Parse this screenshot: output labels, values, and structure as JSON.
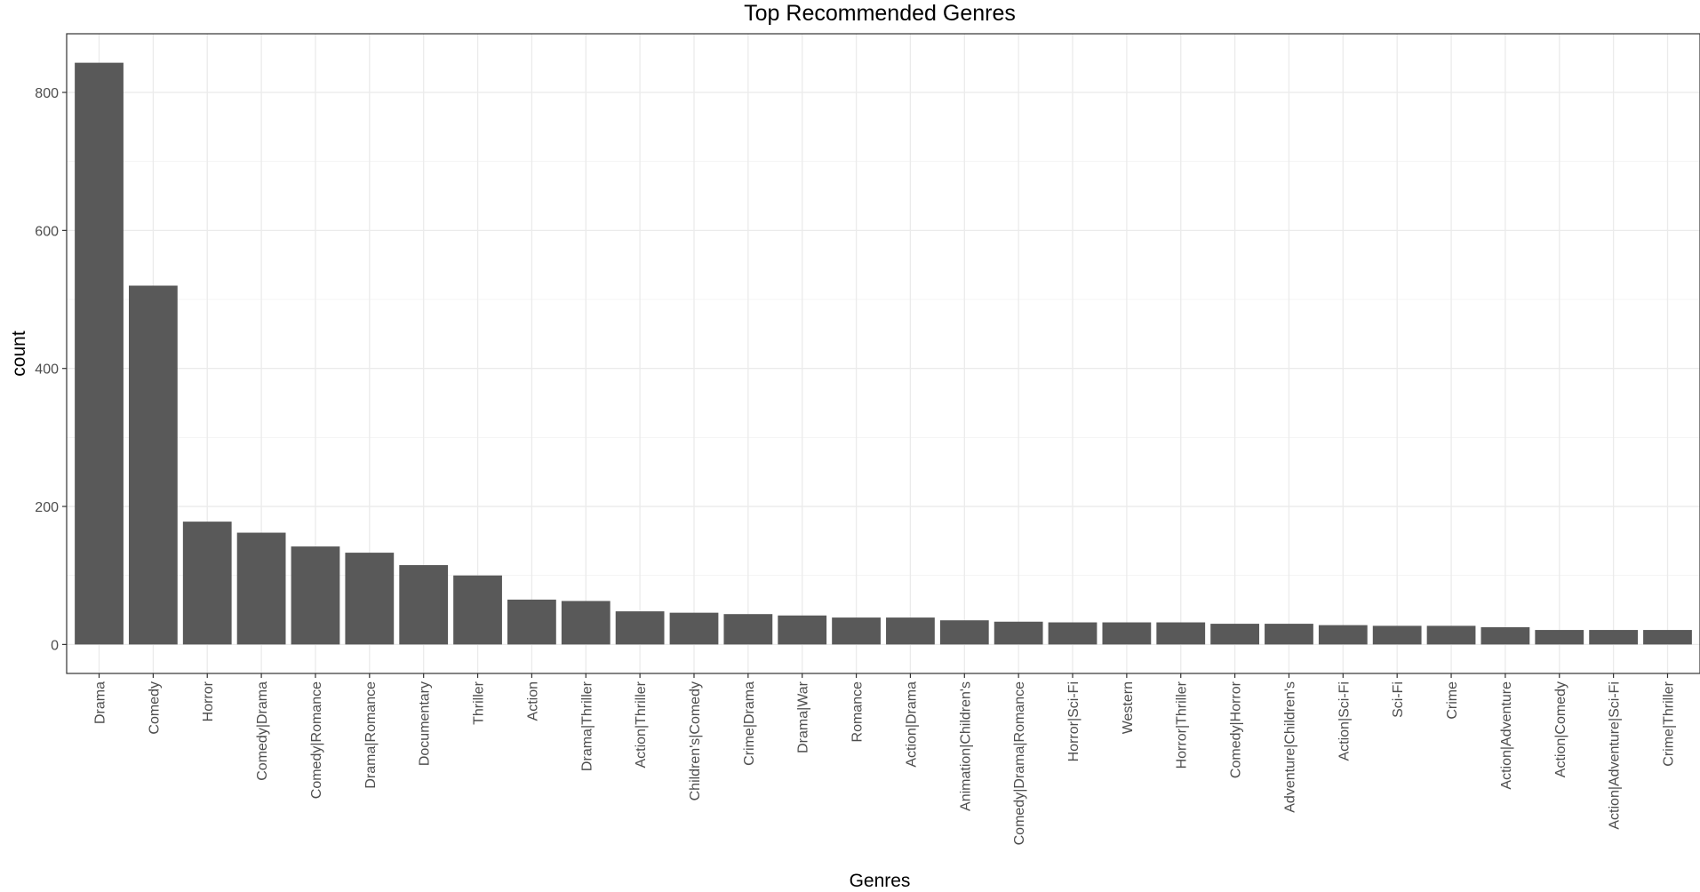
{
  "chart_data": {
    "type": "bar",
    "title": "Top Recommended Genres",
    "xlabel": "Genres",
    "ylabel": "count",
    "ylim": [
      -42,
      885
    ],
    "yticks": [
      0,
      200,
      400,
      600,
      800
    ],
    "grid": true,
    "bar_color": "#595959",
    "categories": [
      "Drama",
      "Comedy",
      "Horror",
      "Comedy|Drama",
      "Comedy|Romance",
      "Drama|Romance",
      "Documentary",
      "Thriller",
      "Action",
      "Drama|Thriller",
      "Action|Thriller",
      "Children's|Comedy",
      "Crime|Drama",
      "Drama|War",
      "Romance",
      "Action|Drama",
      "Animation|Children's",
      "Comedy|Drama|Romance",
      "Horror|Sci-Fi",
      "Western",
      "Horror|Thriller",
      "Comedy|Horror",
      "Adventure|Children's",
      "Action|Sci-Fi",
      "Sci-Fi",
      "Crime",
      "Action|Adventure",
      "Action|Comedy",
      "Action|Adventure|Sci-Fi",
      "Crime|Thriller"
    ],
    "values": [
      843,
      520,
      178,
      162,
      142,
      133,
      115,
      100,
      65,
      63,
      48,
      46,
      44,
      42,
      39,
      39,
      35,
      33,
      32,
      32,
      32,
      30,
      30,
      28,
      27,
      27,
      25,
      21,
      21,
      21
    ]
  }
}
